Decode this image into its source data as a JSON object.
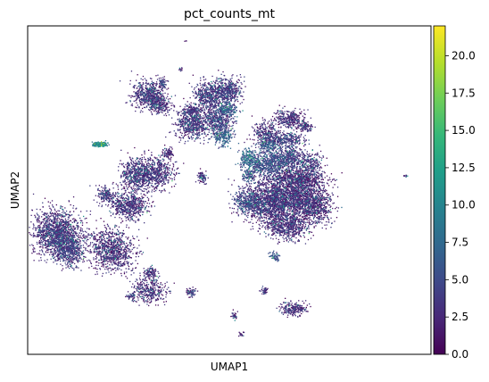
{
  "chart_data": {
    "type": "scatter",
    "title": "pct_counts_mt",
    "xlabel": "UMAP1",
    "ylabel": "UMAP2",
    "x_ticks_shown": false,
    "y_ticks_shown": false,
    "grid": false,
    "legend": "none",
    "colorbar": {
      "label": "",
      "colormap": "viridis",
      "range": [
        0.0,
        22.0
      ],
      "ticks": [
        0.0,
        2.5,
        5.0,
        7.5,
        10.0,
        12.5,
        15.0,
        17.5,
        20.0
      ],
      "tick_labels": [
        "0.0",
        "2.5",
        "5.0",
        "7.5",
        "10.0",
        "12.5",
        "15.0",
        "17.5",
        "20.0"
      ],
      "colors": [
        "#440154",
        "#482878",
        "#3e4989",
        "#31688e",
        "#26828e",
        "#1f9e89",
        "#35b779",
        "#6ece58",
        "#b5de2b",
        "#fde725"
      ]
    },
    "clusters": [
      {
        "x": 0.0,
        "y": 1.05,
        "sx": 0.55,
        "sy": 0.5,
        "value": 2.5,
        "n": 1400
      },
      {
        "x": 0.4,
        "y": 0.5,
        "sx": 0.35,
        "sy": 0.35,
        "value": 3.2,
        "n": 500
      },
      {
        "x": 1.9,
        "y": 0.5,
        "sx": 0.5,
        "sy": 0.45,
        "value": 2.2,
        "n": 900
      },
      {
        "x": 2.5,
        "y": 2.0,
        "sx": 0.42,
        "sy": 0.3,
        "value": 2.3,
        "n": 600
      },
      {
        "x": 1.7,
        "y": 2.35,
        "sx": 0.22,
        "sy": 0.2,
        "value": 3.0,
        "n": 180
      },
      {
        "x": 2.7,
        "y": 3.0,
        "sx": 0.32,
        "sy": 0.32,
        "value": 2.6,
        "n": 500
      },
      {
        "x": 3.4,
        "y": 3.1,
        "sx": 0.4,
        "sy": 0.35,
        "value": 2.4,
        "n": 600
      },
      {
        "x": 3.85,
        "y": 3.75,
        "sx": 0.12,
        "sy": 0.12,
        "value": 2.0,
        "n": 80
      },
      {
        "x": 4.7,
        "y": 4.75,
        "sx": 0.4,
        "sy": 0.35,
        "value": 2.8,
        "n": 650
      },
      {
        "x": 5.6,
        "y": 4.85,
        "sx": 0.3,
        "sy": 0.35,
        "value": 3.2,
        "n": 500
      },
      {
        "x": 5.75,
        "y": 4.3,
        "sx": 0.22,
        "sy": 0.2,
        "value": 6.0,
        "n": 180
      },
      {
        "x": 4.7,
        "y": 5.2,
        "sx": 0.18,
        "sy": 0.1,
        "value": 2.2,
        "n": 120
      },
      {
        "x": 3.15,
        "y": 5.7,
        "sx": 0.38,
        "sy": 0.3,
        "value": 2.6,
        "n": 550
      },
      {
        "x": 3.55,
        "y": 5.4,
        "sx": 0.25,
        "sy": 0.2,
        "value": 2.3,
        "n": 250
      },
      {
        "x": 5.25,
        "y": 5.65,
        "sx": 0.3,
        "sy": 0.3,
        "value": 2.8,
        "n": 450
      },
      {
        "x": 5.9,
        "y": 5.85,
        "sx": 0.32,
        "sy": 0.3,
        "value": 3.0,
        "n": 500
      },
      {
        "x": 5.9,
        "y": 5.2,
        "sx": 0.25,
        "sy": 0.15,
        "value": 5.5,
        "n": 150
      },
      {
        "x": 3.65,
        "y": 6.1,
        "sx": 0.1,
        "sy": 0.1,
        "value": 3.0,
        "n": 60
      },
      {
        "x": 1.5,
        "y": 4.05,
        "sx": 0.18,
        "sy": 0.05,
        "value": 9.5,
        "n": 150
      },
      {
        "x": 7.35,
        "y": 2.1,
        "sx": 0.55,
        "sy": 0.5,
        "value": 2.2,
        "n": 1200
      },
      {
        "x": 8.15,
        "y": 2.3,
        "sx": 0.6,
        "sy": 0.45,
        "value": 2.3,
        "n": 1200
      },
      {
        "x": 8.9,
        "y": 2.0,
        "sx": 0.45,
        "sy": 0.4,
        "value": 2.0,
        "n": 700
      },
      {
        "x": 6.6,
        "y": 2.1,
        "sx": 0.3,
        "sy": 0.25,
        "value": 4.0,
        "n": 350
      },
      {
        "x": 8.0,
        "y": 1.3,
        "sx": 0.5,
        "sy": 0.3,
        "value": 2.3,
        "n": 600
      },
      {
        "x": 8.4,
        "y": 2.9,
        "sx": 0.6,
        "sy": 0.22,
        "value": 1.5,
        "n": 650
      },
      {
        "x": 7.3,
        "y": 3.4,
        "sx": 0.45,
        "sy": 0.3,
        "value": 4.5,
        "n": 600
      },
      {
        "x": 8.0,
        "y": 3.6,
        "sx": 0.4,
        "sy": 0.3,
        "value": 3.5,
        "n": 450
      },
      {
        "x": 8.8,
        "y": 3.4,
        "sx": 0.3,
        "sy": 0.25,
        "value": 3.0,
        "n": 250
      },
      {
        "x": 7.3,
        "y": 4.4,
        "sx": 0.3,
        "sy": 0.25,
        "value": 2.5,
        "n": 300
      },
      {
        "x": 8.0,
        "y": 4.2,
        "sx": 0.35,
        "sy": 0.15,
        "value": 3.0,
        "n": 250
      },
      {
        "x": 7.3,
        "y": 4.05,
        "sx": 0.2,
        "sy": 0.15,
        "value": 5.0,
        "n": 150
      },
      {
        "x": 8.05,
        "y": 4.9,
        "sx": 0.35,
        "sy": 0.2,
        "value": 2.2,
        "n": 300
      },
      {
        "x": 8.6,
        "y": 4.65,
        "sx": 0.2,
        "sy": 0.15,
        "value": 2.5,
        "n": 120
      },
      {
        "x": 6.6,
        "y": 3.55,
        "sx": 0.2,
        "sy": 0.2,
        "value": 6.5,
        "n": 180
      },
      {
        "x": 6.65,
        "y": 3.0,
        "sx": 0.15,
        "sy": 0.12,
        "value": 5.0,
        "n": 100
      },
      {
        "x": 5.05,
        "y": 2.95,
        "sx": 0.1,
        "sy": 0.12,
        "value": 2.5,
        "n": 80
      },
      {
        "x": 7.55,
        "y": 0.3,
        "sx": 0.12,
        "sy": 0.1,
        "value": 5.0,
        "n": 60
      },
      {
        "x": 3.2,
        "y": -0.85,
        "sx": 0.35,
        "sy": 0.28,
        "value": 2.4,
        "n": 350
      },
      {
        "x": 3.25,
        "y": -0.25,
        "sx": 0.15,
        "sy": 0.15,
        "value": 2.2,
        "n": 100
      },
      {
        "x": 2.6,
        "y": -1.05,
        "sx": 0.1,
        "sy": 0.08,
        "value": 3.0,
        "n": 50
      },
      {
        "x": 4.65,
        "y": -0.9,
        "sx": 0.12,
        "sy": 0.1,
        "value": 2.5,
        "n": 60
      },
      {
        "x": 8.2,
        "y": -1.45,
        "sx": 0.3,
        "sy": 0.15,
        "value": 2.3,
        "n": 220
      },
      {
        "x": 7.2,
        "y": -0.85,
        "sx": 0.1,
        "sy": 0.08,
        "value": 2.5,
        "n": 40
      },
      {
        "x": 6.15,
        "y": -1.7,
        "sx": 0.08,
        "sy": 0.1,
        "value": 2.0,
        "n": 30
      },
      {
        "x": 6.4,
        "y": -2.3,
        "sx": 0.06,
        "sy": 0.06,
        "value": 2.0,
        "n": 15
      },
      {
        "x": 12.1,
        "y": 3.0,
        "sx": 0.05,
        "sy": 0.03,
        "value": 2.0,
        "n": 10
      },
      {
        "x": 4.3,
        "y": 6.55,
        "sx": 0.06,
        "sy": 0.05,
        "value": 2.0,
        "n": 10
      },
      {
        "x": 4.45,
        "y": 7.5,
        "sx": 0.03,
        "sy": 0.03,
        "value": 2.0,
        "n": 3
      }
    ],
    "x_range": [
      -1.0,
      13.0
    ],
    "y_range": [
      -3.0,
      8.0
    ]
  }
}
